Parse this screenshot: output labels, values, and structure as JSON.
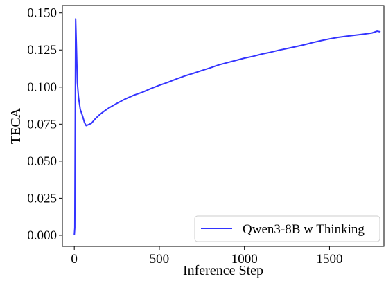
{
  "chart_data": {
    "type": "line",
    "xlabel": "Inference Step",
    "ylabel": "TECA",
    "xlim": [
      -70,
      1820
    ],
    "ylim": [
      -0.0075,
      0.155
    ],
    "xticks": [
      0,
      500,
      1000,
      1500
    ],
    "xtick_labels": [
      "0",
      "500",
      "1000",
      "1500"
    ],
    "yticks": [
      0.0,
      0.025,
      0.05,
      0.075,
      0.1,
      0.125,
      0.15
    ],
    "ytick_labels": [
      "0.000",
      "0.025",
      "0.050",
      "0.075",
      "0.100",
      "0.125",
      "0.150"
    ],
    "legend_position": "lower-right",
    "grid": false,
    "series": [
      {
        "name": "Qwen3-8B w Thinking",
        "color": "#3333ff",
        "x": [
          0,
          3,
          8,
          12,
          18,
          25,
          35,
          50,
          60,
          70,
          80,
          100,
          125,
          150,
          175,
          200,
          250,
          300,
          350,
          400,
          450,
          500,
          550,
          600,
          650,
          700,
          750,
          800,
          850,
          900,
          950,
          1000,
          1050,
          1100,
          1150,
          1200,
          1250,
          1300,
          1350,
          1400,
          1450,
          1500,
          1550,
          1600,
          1650,
          1700,
          1750,
          1780,
          1800
        ],
        "y": [
          0.0,
          0.005,
          0.146,
          0.13,
          0.103,
          0.093,
          0.085,
          0.08,
          0.076,
          0.074,
          0.0745,
          0.0755,
          0.0788,
          0.0815,
          0.0837,
          0.0857,
          0.089,
          0.092,
          0.0945,
          0.0965,
          0.099,
          0.1012,
          0.1032,
          0.1055,
          0.1075,
          0.1093,
          0.1112,
          0.113,
          0.115,
          0.1165,
          0.118,
          0.1195,
          0.1207,
          0.1222,
          0.1234,
          0.1248,
          0.126,
          0.1272,
          0.1285,
          0.13,
          0.1313,
          0.1325,
          0.1335,
          0.1343,
          0.135,
          0.1357,
          0.1365,
          0.1377,
          0.1372
        ]
      }
    ]
  }
}
